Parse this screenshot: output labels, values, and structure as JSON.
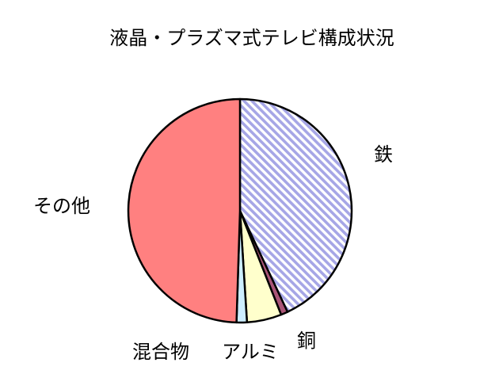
{
  "chart_data": {
    "type": "pie",
    "title": "液晶・プラズマ式テレビ構成状況",
    "slices": [
      {
        "label": "鉄",
        "value": 43,
        "color": "#aaaaee",
        "pattern": "diagonal-stripes"
      },
      {
        "label": "銅",
        "value": 1,
        "color": "#aa5577"
      },
      {
        "label": "アルミ",
        "value": 5,
        "color": "#ffffcc"
      },
      {
        "label": "混合物",
        "value": 1.5,
        "color": "#cceeff"
      },
      {
        "label": "その他",
        "value": 49.5,
        "color": "#ff8080"
      }
    ],
    "legend": "none",
    "start": "12 o'clock, clockwise"
  }
}
